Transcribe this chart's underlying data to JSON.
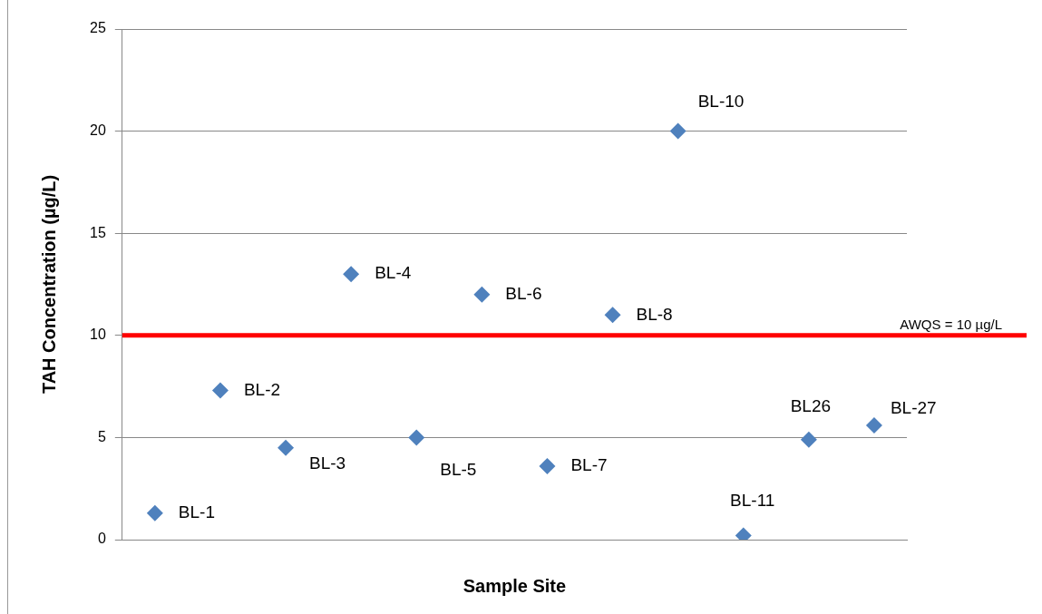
{
  "chart_data": {
    "type": "scatter",
    "xlabel": "Sample Site",
    "ylabel": "TAH Concentration (µg/L)",
    "categories": [
      null,
      null,
      null,
      null,
      null,
      null,
      null,
      null,
      null,
      null,
      null,
      null
    ],
    "series": [
      {
        "color": "#4f81bd",
        "values": [
          1.3,
          7.3,
          4.5,
          13.0,
          5.0,
          12.0,
          3.6,
          11.0,
          20.0,
          0.2,
          4.9,
          5.6
        ],
        "value_labels": [
          "BL-1",
          "BL-2",
          "BL-3",
          "BL-4",
          "BL-5",
          "BL-6",
          "BL-7",
          "BL-8",
          "BL-10",
          "BL-11",
          "BL26",
          "BL-27"
        ]
      }
    ],
    "ylim": [
      0,
      25
    ],
    "yticks": [
      0,
      5,
      10,
      15,
      20,
      25
    ],
    "grid": "y",
    "tick_labels": "y",
    "legend": false,
    "marker": "diamond",
    "ref_lines": [
      {
        "axis": "y",
        "value": 10,
        "label": "AWQS = 10 µg/L",
        "color": "#ff0000"
      }
    ]
  }
}
